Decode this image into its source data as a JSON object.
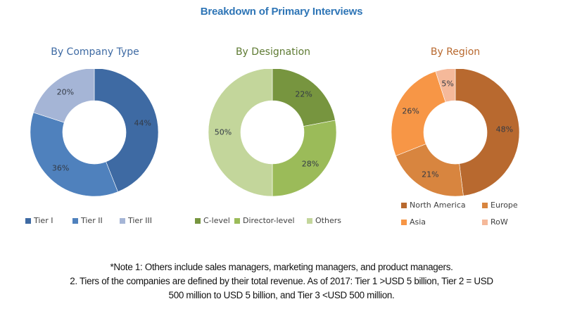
{
  "title": "Breakdown of Primary Interviews",
  "chart_data": [
    {
      "type": "pie",
      "subtype": "donut",
      "title": "By Company Type",
      "categories": [
        "Tier I",
        "Tier II",
        "Tier III"
      ],
      "values": [
        44,
        36,
        20
      ],
      "labels": [
        "44%",
        "36%",
        "20%"
      ],
      "colors": [
        "#3e6aa3",
        "#4f81bd",
        "#a5b5d6"
      ],
      "legend_position": "bottom"
    },
    {
      "type": "pie",
      "subtype": "donut",
      "title": "By Designation",
      "categories": [
        "C-level",
        "Director-level",
        "Others"
      ],
      "values": [
        22,
        28,
        50
      ],
      "labels": [
        "22%",
        "28%",
        "50%"
      ],
      "colors": [
        "#77953f",
        "#9bbb59",
        "#c3d69b"
      ],
      "legend_position": "bottom"
    },
    {
      "type": "pie",
      "subtype": "donut",
      "title": "By Region",
      "categories": [
        "North America",
        "Europe",
        "Asia",
        "RoW"
      ],
      "values": [
        48,
        21,
        26,
        5
      ],
      "labels": [
        "48%",
        "21%",
        "26%",
        "5%"
      ],
      "colors": [
        "#b8692f",
        "#d8853f",
        "#f79646",
        "#f5b99a"
      ],
      "legend_position": "bottom"
    }
  ],
  "panels": {
    "company": {
      "title": "By Company Type",
      "title_color": "#3e6aa3"
    },
    "designation": {
      "title": "By Designation",
      "title_color": "#5e7a32"
    },
    "region": {
      "title": "By Region",
      "title_color": "#b8692f"
    }
  },
  "notes": {
    "line1": "*Note 1: Others include sales managers, marketing managers, and product managers.",
    "line2": "2. Tiers of the companies are defined by their total revenue. As of 2017: Tier 1 >USD 5 billion, Tier 2 = USD",
    "line3": "500 million to USD 5 billion, and Tier 3 <USD 500 million."
  }
}
